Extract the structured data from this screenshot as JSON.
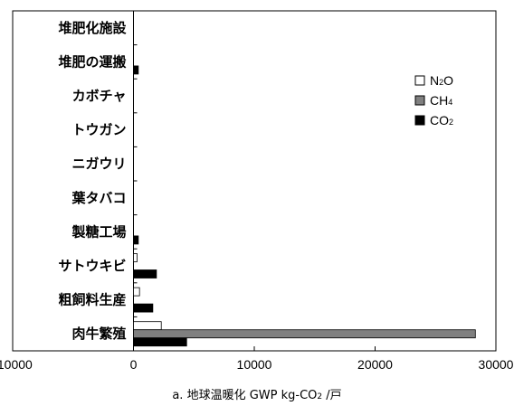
{
  "chart_data": {
    "type": "bar",
    "orientation": "horizontal",
    "categories": [
      "堆肥化施設",
      "堆肥の運搬",
      "カボチャ",
      "トウガン",
      "ニガウリ",
      "葉タバコ",
      "製糖工場",
      "サトウキビ",
      "粗飼料生産",
      "肉牛繁殖"
    ],
    "series": [
      {
        "name": "N2O",
        "color": "#ffffff",
        "values": [
          0,
          0,
          0,
          0,
          0,
          0,
          0,
          300,
          500,
          2300
        ]
      },
      {
        "name": "CH4",
        "color": "#808080",
        "values": [
          0,
          0,
          0,
          0,
          0,
          0,
          0,
          0,
          0,
          28300
        ]
      },
      {
        "name": "CO2",
        "color": "#000000",
        "values": [
          0,
          400,
          0,
          0,
          0,
          0,
          400,
          1900,
          1600,
          4400
        ]
      }
    ],
    "xlim": [
      -10000,
      30000
    ],
    "xticks": [
      "-10000",
      "0",
      "10000",
      "20000",
      "30000"
    ],
    "xlabel": "a. 地球温暖化  GWP kg-CO2 /戸",
    "legend_position": "right",
    "grid": false
  }
}
